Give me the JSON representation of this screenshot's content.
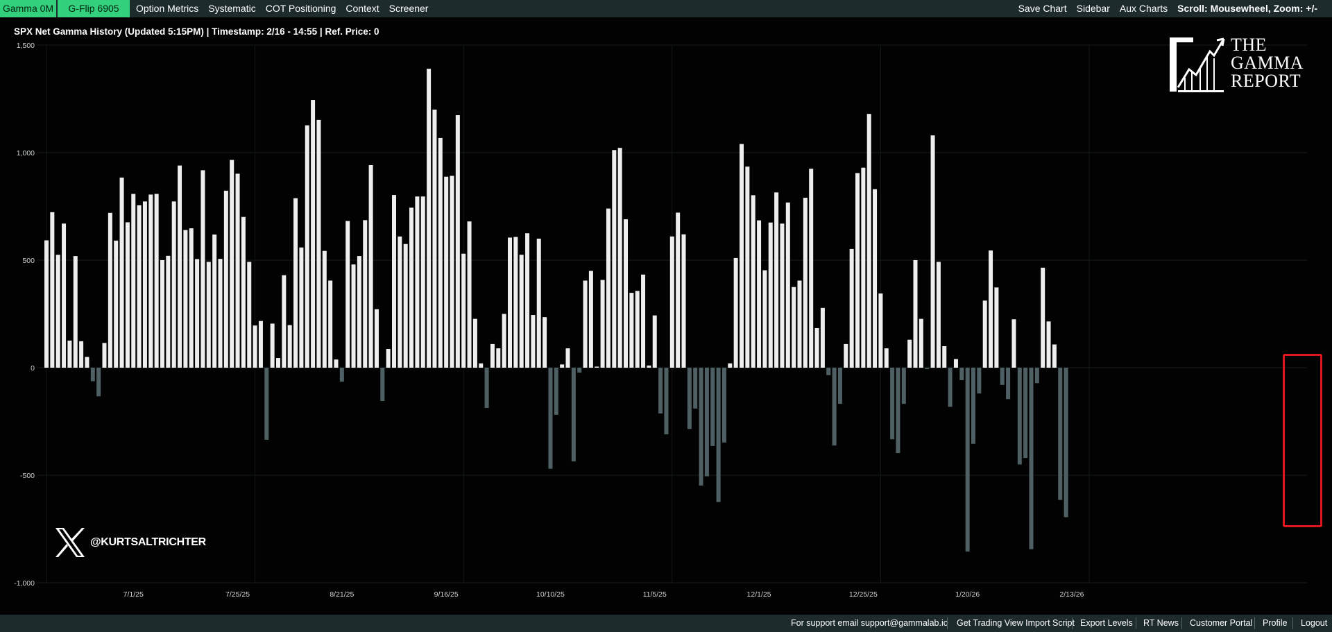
{
  "topbar": {
    "gamma_label": "Gamma 0M",
    "gflip_label": "G-Flip 6905",
    "menu": [
      "Option Metrics",
      "Systematic",
      "COT Positioning",
      "Context",
      "Screener"
    ],
    "right": {
      "save_chart": "Save Chart",
      "sidebar": "Sidebar",
      "aux_charts": "Aux Charts",
      "scroll_hint": "Scroll: Mousewheel, Zoom: +/-"
    }
  },
  "chart_title": "SPX Net Gamma History (Updated 5:15PM) | Timestamp: 2/16 - 14:55  | Ref. Price: 0",
  "logo": {
    "line1": "THE",
    "line2": "GAMMA",
    "line3": "REPORT"
  },
  "social": {
    "handle": "@KURTSALTRICHTER"
  },
  "footer": {
    "support": "For support email support@gammalab.io",
    "tradingview": "Get Trading View Import Script",
    "export_levels": "Export Levels",
    "rt_news": "RT News",
    "customer_portal": "Customer Portal",
    "profile": "Profile",
    "logout": "Logout"
  },
  "colors": {
    "positive_bar": "#eeeeee",
    "negative_bar": "#4e6064",
    "background": "#020202",
    "topbar": "#1d2b2d",
    "accent": "#33d17e",
    "highlight": "#e0161d"
  },
  "chart_data": {
    "type": "bar",
    "title": "SPX Net Gamma History (Updated 5:15PM) | Timestamp: 2/16 - 14:55  | Ref. Price: 0",
    "ylim": [
      -1000,
      1500
    ],
    "yticks": [
      1500,
      1000,
      500,
      0,
      -500,
      -1000
    ],
    "ytick_labels": [
      "1,500",
      "1,000",
      "500",
      "0",
      "-500",
      "-1,000"
    ],
    "xtick_labels": [
      "7/1/25",
      "7/25/25",
      "8/21/25",
      "9/16/25",
      "10/10/25",
      "11/5/25",
      "12/1/25",
      "12/25/25",
      "1/20/26",
      "2/13/26"
    ],
    "xtick_index": [
      15,
      33,
      51,
      69,
      87,
      105,
      123,
      141,
      159,
      177
    ],
    "grid": true,
    "legend": "none",
    "series": [
      {
        "values": [
          592,
          723,
          525,
          670,
          126,
          519,
          123,
          50,
          -63,
          -133,
          115,
          720,
          591,
          884,
          676,
          808,
          755,
          773,
          805,
          808,
          500,
          520,
          773,
          940,
          640,
          648,
          505,
          918,
          492,
          619,
          506,
          823,
          966,
          902,
          701,
          492,
          196,
          217,
          -335,
          205,
          45,
          430,
          198,
          788,
          559,
          1127,
          1245,
          1152,
          543,
          405,
          38,
          -65,
          682,
          480,
          519,
          686,
          942,
          272,
          -155,
          87,
          803,
          610,
          575,
          744,
          796,
          796,
          1390,
          1200,
          1068,
          888,
          892,
          1174,
          530,
          680,
          227,
          20,
          -187,
          110,
          90,
          250,
          605,
          608,
          525,
          625,
          245,
          600,
          235,
          -470,
          -219,
          15,
          90,
          -436,
          -23,
          405,
          450,
          5,
          408,
          740,
          1012,
          1022,
          690,
          348,
          357,
          433,
          10,
          243,
          -213,
          -310,
          610,
          721,
          620,
          -285,
          -190,
          -548,
          -505,
          -364,
          -625,
          -348,
          20,
          510,
          1040,
          935,
          802,
          685,
          453,
          675,
          815,
          670,
          768,
          375,
          405,
          790,
          925,
          184,
          278,
          -35,
          -362,
          -168,
          110,
          552,
          905,
          930,
          1180,
          830,
          345,
          90,
          -333,
          -397,
          -168,
          130,
          500,
          227,
          -6,
          1080,
          492,
          100,
          -182,
          40,
          -58,
          -855,
          -354,
          -120,
          312,
          545,
          373,
          -80,
          -146,
          225,
          -450,
          -420,
          -844,
          -72,
          465,
          215,
          108,
          -615,
          -695
        ]
      }
    ]
  }
}
